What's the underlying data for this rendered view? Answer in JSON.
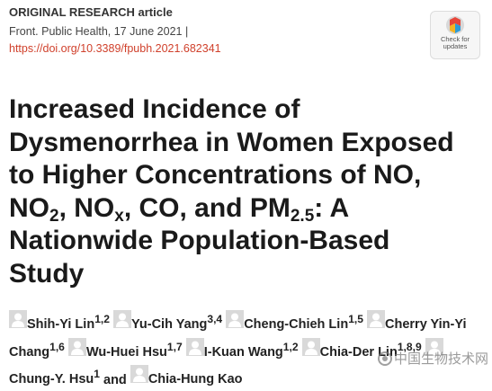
{
  "header": {
    "article_type": "ORIGINAL RESEARCH article",
    "citation": "Front. Public Health, 17 June 2021 |",
    "doi": "https://doi.org/10.3389/fpubh.2021.682341",
    "badge": "Check for updates"
  },
  "title": {
    "lines": [
      [
        {
          "text": "Increased Incidence of"
        }
      ],
      [
        {
          "text": "Dysmenorrhea in Women Exposed"
        }
      ],
      [
        {
          "text": "to Higher Concentrations of NO,"
        }
      ],
      [
        {
          "text": "NO"
        },
        {
          "sub": "2"
        },
        {
          "text": ", NO"
        },
        {
          "sub": "x"
        },
        {
          "text": ", CO, and PM"
        },
        {
          "sub": "2.5"
        },
        {
          "text": ": A"
        }
      ],
      [
        {
          "text": "Nationwide Population-Based"
        }
      ],
      [
        {
          "text": "Study"
        }
      ]
    ]
  },
  "authors": {
    "list": [
      {
        "name": "Shih-Yi Lin",
        "affiliations": "1,2"
      },
      {
        "name": "Yu-Cih Yang",
        "affiliations": "3,4"
      },
      {
        "name": "Cheng-Chieh Lin",
        "affiliations": "1,5"
      },
      {
        "name": "Cherry Yin-Yi Chang",
        "affiliations": "1,6"
      },
      {
        "name": "Wu-Huei Hsu",
        "affiliations": "1,7"
      },
      {
        "name": "I-Kuan Wang",
        "affiliations": "1,2"
      },
      {
        "name": "Chia-Der Lin",
        "affiliations": "1,8,9"
      },
      {
        "name": "Chung-Y. Hsu",
        "affiliations": "1"
      },
      {
        "name": "Chia-Hung Kao"
      }
    ],
    "conjunction": "and"
  },
  "watermark": "中国生物技术网"
}
